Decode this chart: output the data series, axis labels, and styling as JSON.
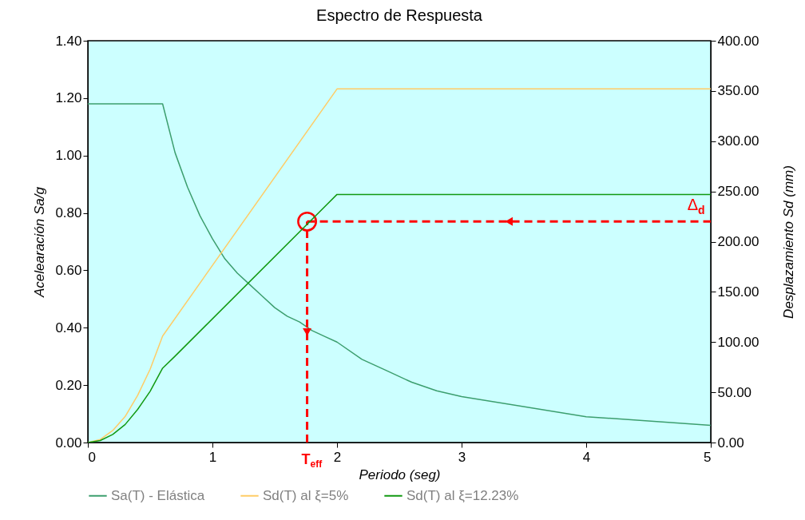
{
  "chart_data": {
    "type": "line",
    "title": "Espectro de Respuesta",
    "xlabel": "Periodo (seg)",
    "ylabel": "Acelearación Sa/g",
    "y2label": "Desplazamiento Sd (mm)",
    "xlim": [
      0,
      5
    ],
    "xticks": [
      0,
      1,
      2,
      3,
      4,
      5
    ],
    "ylim": [
      0,
      1.4
    ],
    "yticks": [
      {
        "value": 0,
        "label": "0.00"
      },
      {
        "value": 0.2,
        "label": "0.20"
      },
      {
        "value": 0.4,
        "label": "0.40"
      },
      {
        "value": 0.6,
        "label": "0.60"
      },
      {
        "value": 0.8,
        "label": "0.80"
      },
      {
        "value": 1,
        "label": "1.00"
      },
      {
        "value": 1.2,
        "label": "1.20"
      },
      {
        "value": 1.4,
        "label": "1.40"
      }
    ],
    "y2lim": [
      0,
      400
    ],
    "y2ticks": [
      {
        "value": 0,
        "label": "0.00"
      },
      {
        "value": 50,
        "label": "50.00"
      },
      {
        "value": 100,
        "label": "100.00"
      },
      {
        "value": 150,
        "label": "150.00"
      },
      {
        "value": 200,
        "label": "200.00"
      },
      {
        "value": 250,
        "label": "250.00"
      },
      {
        "value": 300,
        "label": "300.00"
      },
      {
        "value": 350,
        "label": "350.00"
      },
      {
        "value": 400,
        "label": "400.00"
      }
    ],
    "series": [
      {
        "name": "Sa(T) - Elástica",
        "color": "#3c9e6e",
        "x": [
          0,
          0.1,
          0.2,
          0.3,
          0.4,
          0.5,
          0.6,
          0.7,
          0.8,
          0.9,
          1.0,
          1.1,
          1.2,
          1.3,
          1.4,
          1.5,
          1.6,
          1.7,
          1.8,
          1.9,
          2.0,
          2.2,
          2.4,
          2.6,
          2.8,
          3.0,
          4.0,
          5.0
        ],
        "values": [
          1.18,
          1.18,
          1.18,
          1.18,
          1.18,
          1.18,
          1.18,
          1.01,
          0.89,
          0.79,
          0.71,
          0.64,
          0.59,
          0.55,
          0.51,
          0.47,
          0.44,
          0.42,
          0.39,
          0.37,
          0.35,
          0.29,
          0.25,
          0.21,
          0.18,
          0.16,
          0.09,
          0.06
        ]
      },
      {
        "name": "Sd(T) al ξ=5%",
        "color": "#ffcc66",
        "axis": "y2",
        "x": [
          0,
          0.1,
          0.2,
          0.3,
          0.4,
          0.5,
          0.6,
          2.0,
          5.0
        ],
        "values": [
          0,
          3,
          12,
          26,
          47,
          73,
          106,
          352,
          352
        ]
      },
      {
        "name": "Sd(T) al ξ=12.23%",
        "color": "#119911",
        "axis": "y2",
        "x": [
          0,
          0.1,
          0.2,
          0.3,
          0.4,
          0.5,
          0.6,
          0.7,
          2.0,
          5.0
        ],
        "values": [
          0,
          2,
          8,
          18,
          33,
          51,
          74,
          86,
          247,
          247
        ]
      }
    ],
    "ref_lines": [
      {
        "axis": "x",
        "value": 1.76,
        "label": "T$_{eff}$",
        "color": "#ff0000",
        "line_style": "dashed"
      },
      {
        "axis": "y",
        "value": 0.77,
        "label": "Δ$_{d}$",
        "color": "#ff0000",
        "line_style": "dashed"
      }
    ],
    "legend": "bottom",
    "grid": false,
    "marker": "none",
    "line_style": "solid"
  }
}
